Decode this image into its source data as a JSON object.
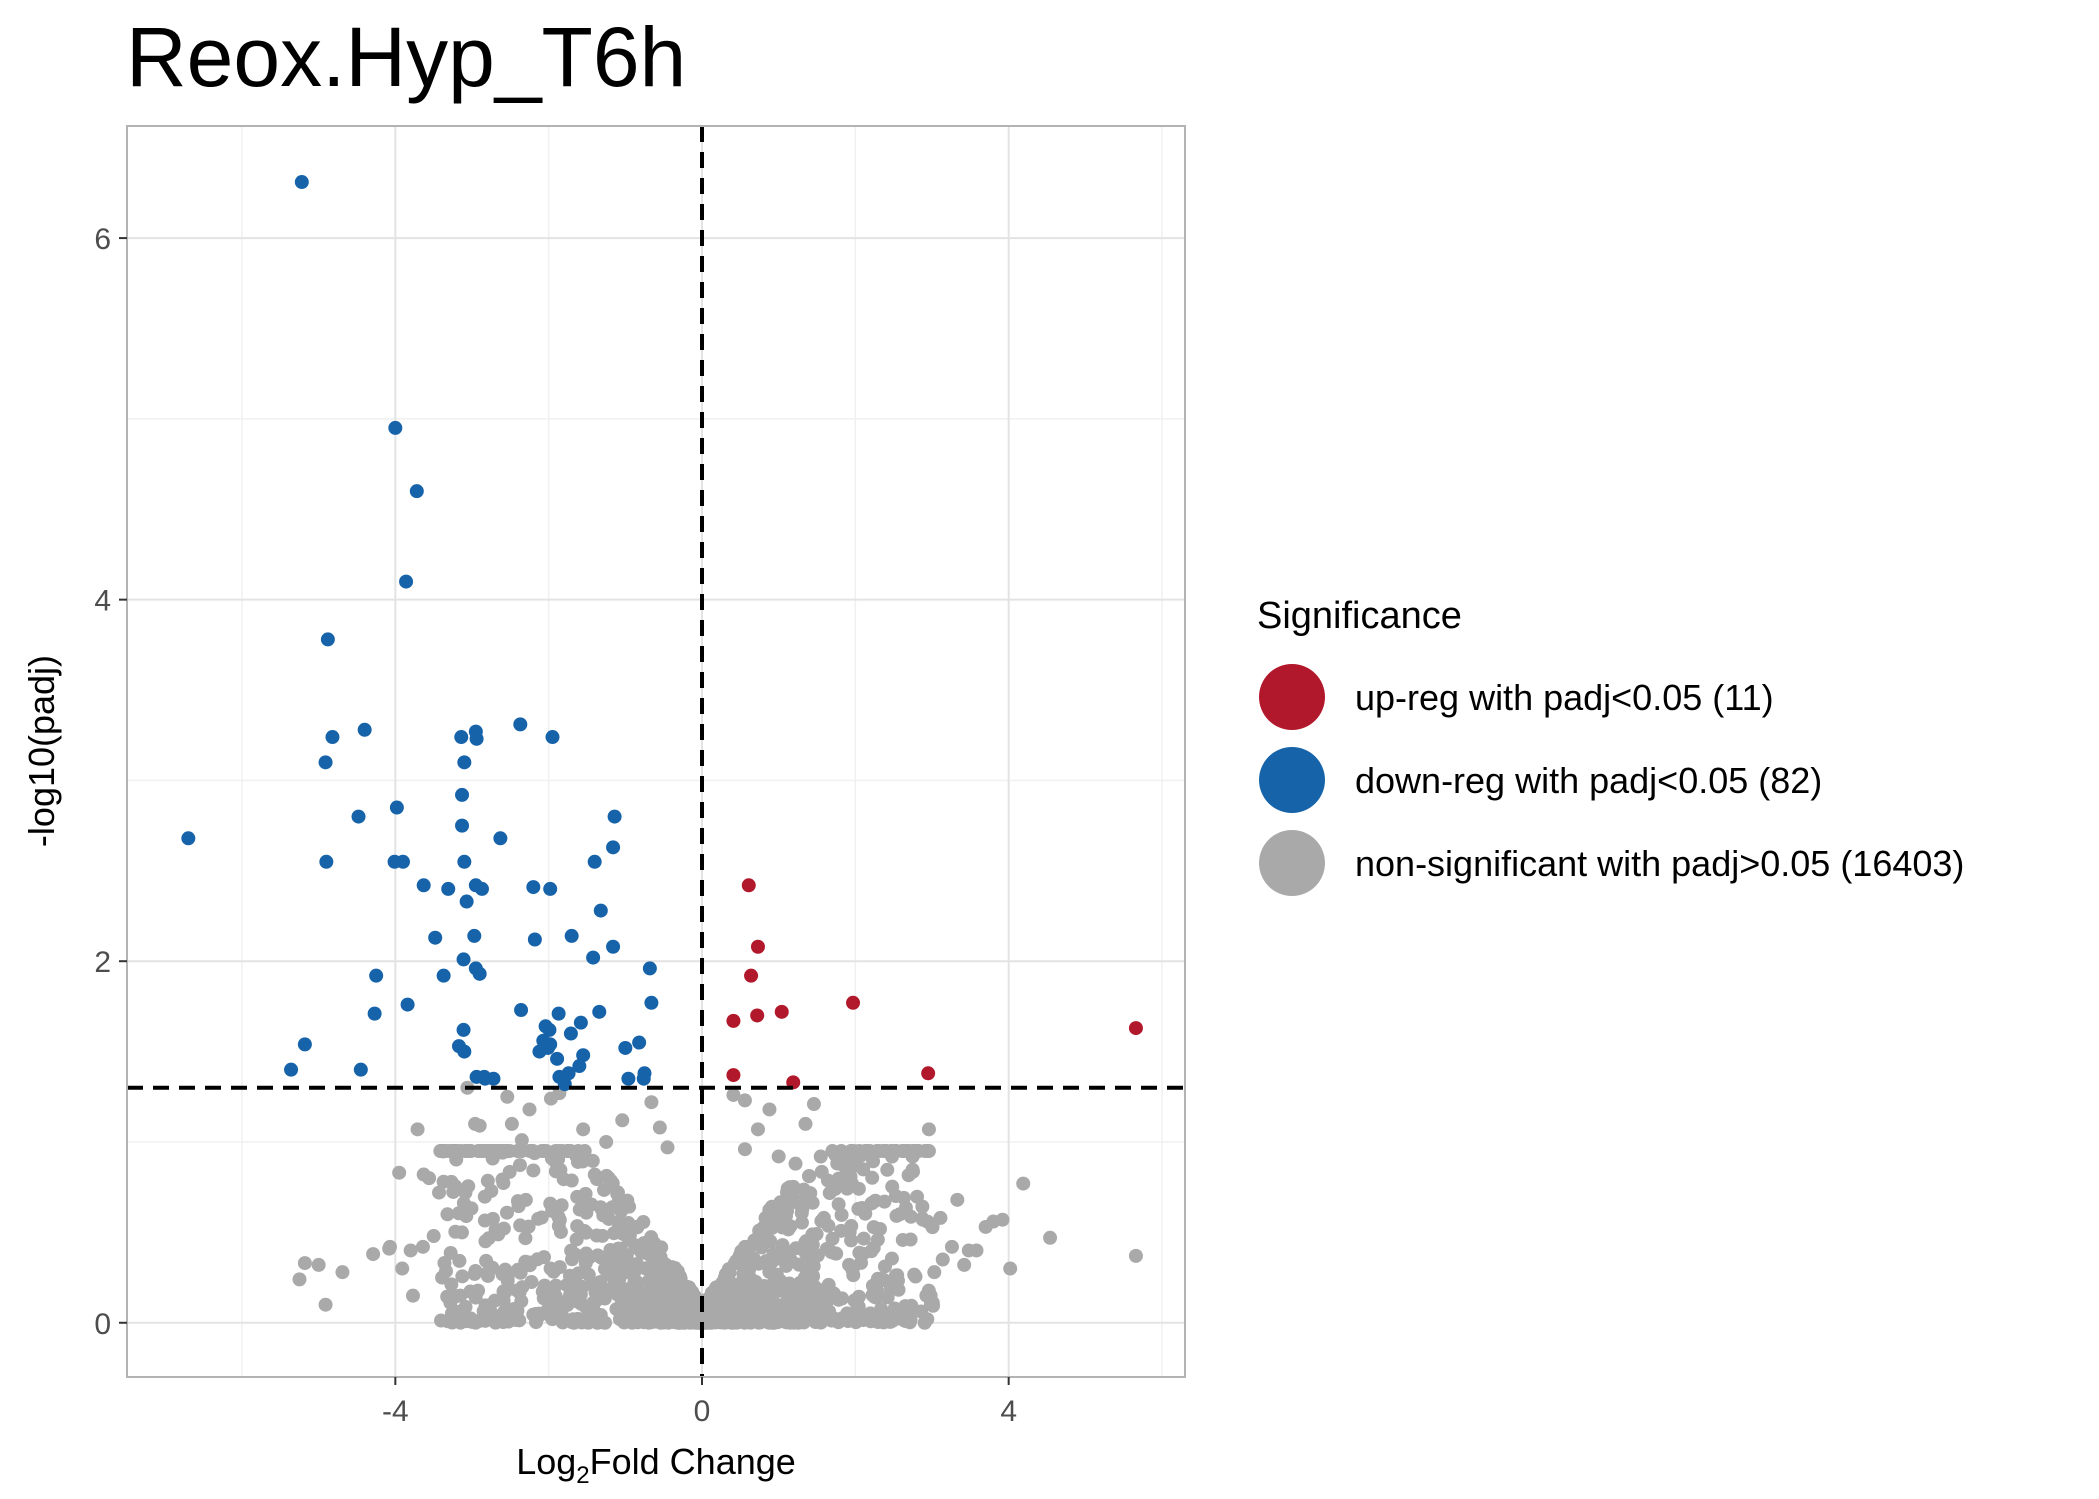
{
  "chart_data": {
    "type": "scatter",
    "title": "Reox.Hyp_T6h",
    "xlabel": {
      "prefix": "Log",
      "subscript": "2",
      "suffix": "Fold Change"
    },
    "ylabel": "-log10(padj)",
    "xlim": [
      -7.5,
      6.3
    ],
    "ylim": [
      -0.3,
      6.62
    ],
    "x_ticks": [
      -4,
      0,
      4
    ],
    "x_tick_labels": [
      "-4",
      "0",
      "4"
    ],
    "y_ticks": [
      0,
      2,
      4,
      6
    ],
    "y_tick_labels": [
      "0",
      "2",
      "4",
      "6"
    ],
    "grid": true,
    "threshold_lines": {
      "vertical_x": 0,
      "horizontal_y": 1.3
    },
    "legend": {
      "title": "Significance",
      "position": "right",
      "entries": [
        {
          "label": "up-reg with padj<0.05 (11)",
          "color": "#b2182b"
        },
        {
          "label": "down-reg with padj<0.05 (82)",
          "color": "#1763aa"
        },
        {
          "label": "non-significant with padj>0.05 (16403)",
          "color": "#a9a9a9"
        }
      ]
    },
    "series": [
      {
        "name": "up-reg with padj<0.05 (11)",
        "color": "#b2182b",
        "points": [
          [
            0.61,
            2.42
          ],
          [
            0.73,
            2.08
          ],
          [
            0.64,
            1.92
          ],
          [
            0.72,
            1.7
          ],
          [
            1.04,
            1.72
          ],
          [
            0.41,
            1.67
          ],
          [
            1.97,
            1.77
          ],
          [
            5.66,
            1.63
          ],
          [
            2.95,
            1.38
          ],
          [
            0.41,
            1.37
          ],
          [
            1.19,
            1.33
          ]
        ]
      },
      {
        "name": "down-reg with padj<0.05 (82)",
        "color": "#1763aa",
        "points": [
          [
            -5.22,
            6.31
          ],
          [
            -4.0,
            4.95
          ],
          [
            -3.72,
            4.6
          ],
          [
            -3.86,
            4.1
          ],
          [
            -4.88,
            3.78
          ],
          [
            -2.37,
            3.31
          ],
          [
            -4.4,
            3.28
          ],
          [
            -3.14,
            3.24
          ],
          [
            -2.95,
            3.27
          ],
          [
            -2.94,
            3.23
          ],
          [
            -1.95,
            3.24
          ],
          [
            -4.82,
            3.24
          ],
          [
            -4.91,
            3.1
          ],
          [
            -3.1,
            3.1
          ],
          [
            -3.13,
            2.92
          ],
          [
            -3.98,
            2.85
          ],
          [
            -4.48,
            2.8
          ],
          [
            -1.14,
            2.8
          ],
          [
            -6.7,
            2.68
          ],
          [
            -2.63,
            2.68
          ],
          [
            -3.13,
            2.75
          ],
          [
            -1.16,
            2.63
          ],
          [
            -4.01,
            2.55
          ],
          [
            -3.9,
            2.55
          ],
          [
            -4.9,
            2.55
          ],
          [
            -3.1,
            2.55
          ],
          [
            -1.4,
            2.55
          ],
          [
            -3.63,
            2.42
          ],
          [
            -3.31,
            2.4
          ],
          [
            -2.95,
            2.42
          ],
          [
            -2.2,
            2.41
          ],
          [
            -2.87,
            2.4
          ],
          [
            -1.98,
            2.4
          ],
          [
            -3.07,
            2.33
          ],
          [
            -1.32,
            2.28
          ],
          [
            -3.48,
            2.13
          ],
          [
            -2.97,
            2.14
          ],
          [
            -2.18,
            2.12
          ],
          [
            -1.7,
            2.14
          ],
          [
            -1.16,
            2.08
          ],
          [
            -1.42,
            2.02
          ],
          [
            -3.11,
            2.01
          ],
          [
            -2.95,
            1.96
          ],
          [
            -2.9,
            1.93
          ],
          [
            -4.25,
            1.92
          ],
          [
            -3.37,
            1.92
          ],
          [
            -0.68,
            1.96
          ],
          [
            -3.84,
            1.76
          ],
          [
            -0.66,
            1.77
          ],
          [
            -4.27,
            1.71
          ],
          [
            -2.36,
            1.73
          ],
          [
            -1.87,
            1.71
          ],
          [
            -1.34,
            1.72
          ],
          [
            -1.58,
            1.66
          ],
          [
            -2.04,
            1.64
          ],
          [
            -1.99,
            1.62
          ],
          [
            -1.71,
            1.6
          ],
          [
            -1.0,
            1.52
          ],
          [
            -3.11,
            1.62
          ],
          [
            -2.07,
            1.56
          ],
          [
            -1.98,
            1.54
          ],
          [
            -0.82,
            1.55
          ],
          [
            -5.18,
            1.54
          ],
          [
            -3.17,
            1.53
          ],
          [
            -3.1,
            1.5
          ],
          [
            -2.12,
            1.5
          ],
          [
            -2.01,
            1.52
          ],
          [
            -1.89,
            1.46
          ],
          [
            -1.55,
            1.48
          ],
          [
            -1.6,
            1.42
          ],
          [
            -5.36,
            1.4
          ],
          [
            -4.45,
            1.4
          ],
          [
            -1.74,
            1.38
          ],
          [
            -0.75,
            1.38
          ],
          [
            -2.83,
            1.35
          ],
          [
            -2.72,
            1.35
          ],
          [
            -2.84,
            1.36
          ],
          [
            -2.94,
            1.36
          ],
          [
            -0.76,
            1.35
          ],
          [
            -0.96,
            1.35
          ],
          [
            -1.79,
            1.32
          ],
          [
            -1.86,
            1.36
          ]
        ]
      },
      {
        "name": "non-significant with padj>0.05 (16403)",
        "color": "#a9a9a9",
        "spread": {
          "left_x": [
            -3.6,
            -0.05
          ],
          "right_x": [
            0.05,
            3.3
          ],
          "y_range": [
            0.0,
            0.95
          ],
          "sample_count": 1400
        },
        "points": [
          [
            -3.71,
            1.07
          ],
          [
            -3.63,
            0.82
          ],
          [
            -3.06,
            1.3
          ],
          [
            -2.96,
            1.1
          ],
          [
            -2.9,
            1.09
          ],
          [
            -2.54,
            1.25
          ],
          [
            -2.48,
            1.1
          ],
          [
            -2.35,
            1.01
          ],
          [
            -2.25,
            1.18
          ],
          [
            -1.97,
            1.24
          ],
          [
            -1.86,
            1.27
          ],
          [
            -1.55,
            1.07
          ],
          [
            -1.25,
            1.0
          ],
          [
            -1.04,
            1.12
          ],
          [
            -0.66,
            1.22
          ],
          [
            -0.55,
            1.08
          ],
          [
            -0.45,
            0.97
          ],
          [
            -3.37,
            0.78
          ],
          [
            -3.56,
            0.8
          ],
          [
            -3.43,
            0.72
          ],
          [
            -3.32,
            0.6
          ],
          [
            -3.5,
            0.48
          ],
          [
            -3.64,
            0.42
          ],
          [
            -3.8,
            0.4
          ],
          [
            -4.07,
            0.42
          ],
          [
            -3.91,
            0.3
          ],
          [
            -3.77,
            0.15
          ],
          [
            -3.39,
            0.25
          ],
          [
            -4.29,
            0.38
          ],
          [
            -3.95,
            0.83
          ],
          [
            -4.08,
            0.41
          ],
          [
            -5.18,
            0.33
          ],
          [
            -5.0,
            0.32
          ],
          [
            -4.69,
            0.28
          ],
          [
            -5.25,
            0.24
          ],
          [
            -4.91,
            0.1
          ],
          [
            0.41,
            1.26
          ],
          [
            0.56,
            1.23
          ],
          [
            0.88,
            1.18
          ],
          [
            1.46,
            1.21
          ],
          [
            1.35,
            1.1
          ],
          [
            0.73,
            1.07
          ],
          [
            0.56,
            0.96
          ],
          [
            1.0,
            0.92
          ],
          [
            1.22,
            0.88
          ],
          [
            1.86,
            0.92
          ],
          [
            2.0,
            0.9
          ],
          [
            2.21,
            0.66
          ],
          [
            2.38,
            0.67
          ],
          [
            2.04,
            0.63
          ],
          [
            2.58,
            0.6
          ],
          [
            2.88,
            0.57
          ],
          [
            3.11,
            0.58
          ],
          [
            3.33,
            0.68
          ],
          [
            2.96,
            1.07
          ],
          [
            1.59,
            0.58
          ],
          [
            3.26,
            0.42
          ],
          [
            3.48,
            0.4
          ],
          [
            3.42,
            0.32
          ],
          [
            3.03,
            0.28
          ],
          [
            3.14,
            0.35
          ],
          [
            3.7,
            0.53
          ],
          [
            3.8,
            0.56
          ],
          [
            3.92,
            0.57
          ],
          [
            3.58,
            0.4
          ],
          [
            4.19,
            0.77
          ],
          [
            4.54,
            0.47
          ],
          [
            4.02,
            0.3
          ],
          [
            5.66,
            0.37
          ]
        ]
      }
    ]
  }
}
